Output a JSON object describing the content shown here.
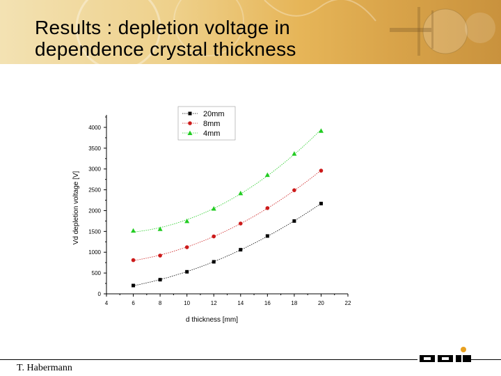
{
  "slide": {
    "title_line1": "Results : depletion voltage in",
    "title_line2": "dependence crystal thickness",
    "author": "T. Habermann",
    "logo_text": "GSI"
  },
  "colors": {
    "series_20mm": "#000000",
    "series_8mm": "#cc1a1a",
    "series_4mm": "#22cc22"
  },
  "chart_data": {
    "type": "scatter",
    "title": "",
    "xlabel": "d thickness [mm]",
    "ylabel": "Vd depletion voltage  [V]",
    "xlim": [
      4,
      22
    ],
    "ylim": [
      0,
      4300
    ],
    "xticks": [
      4,
      6,
      8,
      10,
      12,
      14,
      16,
      18,
      20,
      22
    ],
    "yticks": [
      0,
      500,
      1000,
      1500,
      2000,
      2500,
      3000,
      3500,
      4000
    ],
    "legend_position": "top",
    "grid": false,
    "x": [
      6,
      8,
      10,
      12,
      14,
      16,
      18,
      20
    ],
    "series": [
      {
        "name": "20mm",
        "marker": "square",
        "color": "#000000",
        "values": [
          200,
          340,
          530,
          770,
          1060,
          1390,
          1750,
          2170
        ]
      },
      {
        "name": "8mm",
        "marker": "circle",
        "color": "#cc1a1a",
        "values": [
          810,
          920,
          1120,
          1380,
          1690,
          2060,
          2490,
          2960
        ]
      },
      {
        "name": "4mm",
        "marker": "triangle",
        "color": "#22cc22",
        "values": [
          1520,
          1560,
          1750,
          2050,
          2420,
          2860,
          3370,
          3920
        ]
      }
    ]
  }
}
